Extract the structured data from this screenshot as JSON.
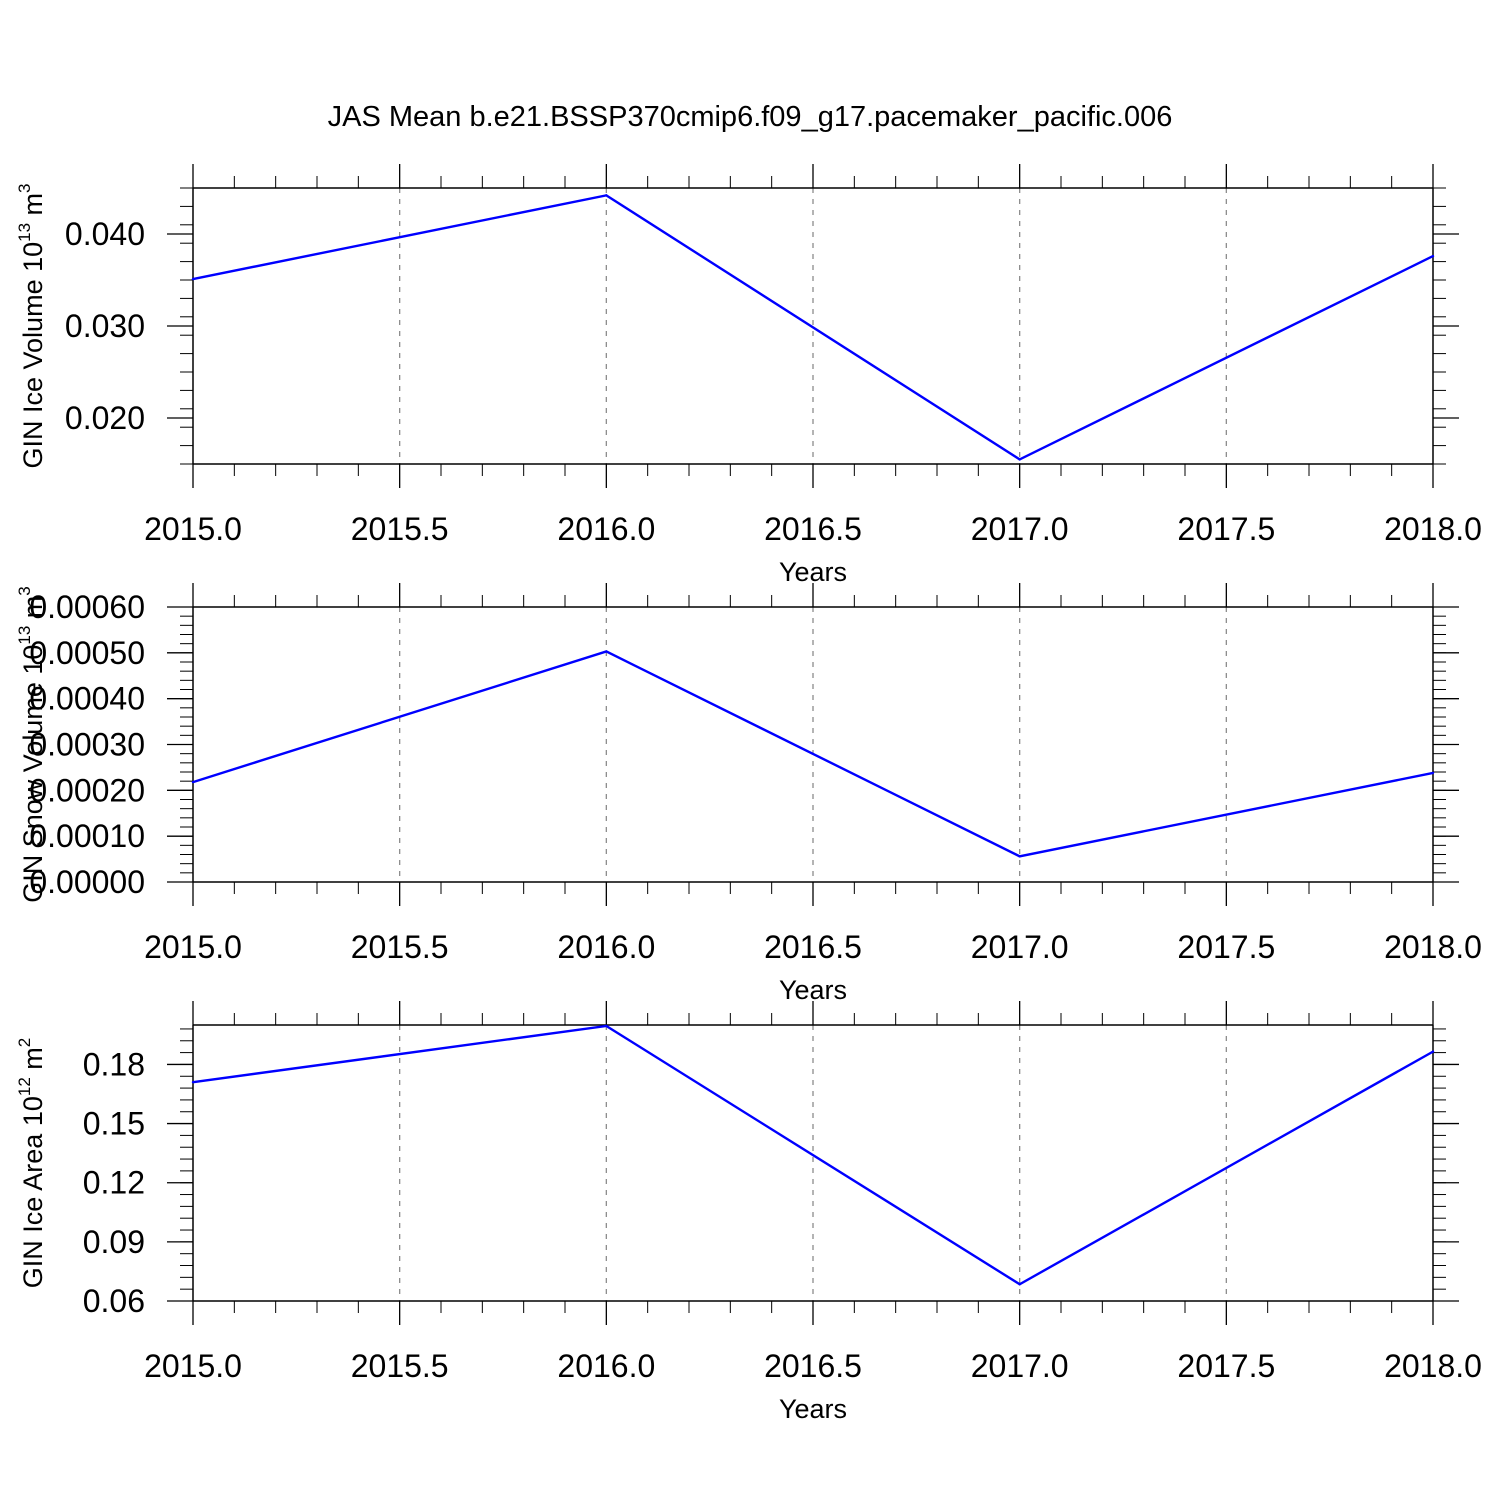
{
  "title": "JAS Mean b.e21.BSSP370cmip6.f09_g17.pacemaker_pacific.006",
  "line_color": "#0000ff",
  "grid_color": "#8c8c8c",
  "chart_data": [
    {
      "type": "line",
      "name": "ice-volume",
      "xlabel": "Years",
      "ylabel": {
        "text": "GIN Ice Volume 10",
        "sup": "13",
        "unit": " m",
        "unit_sup": "3"
      },
      "x": [
        2015.0,
        2016.0,
        2017.0,
        2018.0
      ],
      "y": [
        0.0351,
        0.0442,
        0.0155,
        0.0376
      ],
      "xlim": [
        2015.0,
        2018.0
      ],
      "ylim": [
        0.015,
        0.045
      ],
      "xticks": [
        2015.0,
        2015.5,
        2016.0,
        2016.5,
        2017.0,
        2017.5,
        2018.0
      ],
      "xtick_labels": [
        "2015.0",
        "2015.5",
        "2016.0",
        "2016.5",
        "2017.0",
        "2017.5",
        "2018.0"
      ],
      "yticks": [
        0.02,
        0.03,
        0.04
      ],
      "ytick_labels": [
        "0.020",
        "0.030",
        "0.040"
      ],
      "y_minor_step": 0.002,
      "grid": "x-dashed"
    },
    {
      "type": "line",
      "name": "snow-volume",
      "xlabel": "Years",
      "ylabel": {
        "text": "GIN Snow Volume 10",
        "sup": "13",
        "unit": " m",
        "unit_sup": "3"
      },
      "x": [
        2015.0,
        2016.0,
        2017.0,
        2018.0
      ],
      "y": [
        0.000218,
        0.000503,
        5.6e-05,
        0.000238
      ],
      "xlim": [
        2015.0,
        2018.0
      ],
      "ylim": [
        0.0,
        0.0006
      ],
      "xticks": [
        2015.0,
        2015.5,
        2016.0,
        2016.5,
        2017.0,
        2017.5,
        2018.0
      ],
      "xtick_labels": [
        "2015.0",
        "2015.5",
        "2016.0",
        "2016.5",
        "2017.0",
        "2017.5",
        "2018.0"
      ],
      "yticks": [
        0.0,
        0.0001,
        0.0002,
        0.0003,
        0.0004,
        0.0005,
        0.0006
      ],
      "ytick_labels": [
        "0.00000",
        "0.00010",
        "0.00020",
        "0.00030",
        "0.00040",
        "0.00050",
        "0.00060"
      ],
      "y_minor_step": 2e-05,
      "grid": "x-dashed"
    },
    {
      "type": "line",
      "name": "ice-area",
      "xlabel": "Years",
      "ylabel": {
        "text": "GIN Ice Area 10",
        "sup": "12",
        "unit": " m",
        "unit_sup": "2"
      },
      "x": [
        2015.0,
        2016.0,
        2017.0,
        2018.0
      ],
      "y": [
        0.171,
        0.1995,
        0.0685,
        0.1865
      ],
      "xlim": [
        2015.0,
        2018.0
      ],
      "ylim": [
        0.06,
        0.2
      ],
      "xticks": [
        2015.0,
        2015.5,
        2016.0,
        2016.5,
        2017.0,
        2017.5,
        2018.0
      ],
      "xtick_labels": [
        "2015.0",
        "2015.5",
        "2016.0",
        "2016.5",
        "2017.0",
        "2017.5",
        "2018.0"
      ],
      "yticks": [
        0.06,
        0.09,
        0.12,
        0.15,
        0.18
      ],
      "ytick_labels": [
        "0.06",
        "0.09",
        "0.12",
        "0.15",
        "0.18"
      ],
      "y_minor_step": 0.006,
      "grid": "x-dashed"
    }
  ]
}
